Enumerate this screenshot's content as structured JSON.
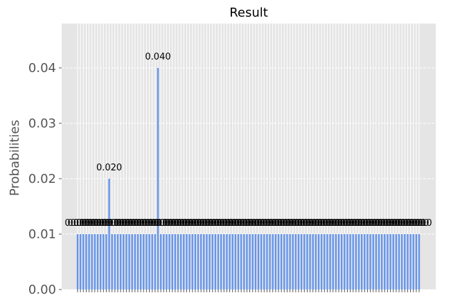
{
  "chart_data": {
    "type": "bar",
    "title": "Result",
    "xlabel": "",
    "ylabel": "Probabilities",
    "ylim": [
      0,
      0.048
    ],
    "yticks": [
      0.0,
      0.01,
      0.02,
      0.03,
      0.04
    ],
    "ytick_labels": [
      "0.00",
      "0.01",
      "0.02",
      "0.03",
      "0.04"
    ],
    "grid": true,
    "legend": "none",
    "colors": {
      "bar": "#6495ED",
      "plot_background": "#E5E5E5",
      "grid": "#FFFFFF",
      "text": "#000000",
      "axis_text": "#555555"
    },
    "values": [
      0.01,
      0.01,
      0.01,
      0.01,
      0.01,
      0.01,
      0.01,
      0.01,
      0.01,
      0.01,
      0.01,
      0.02,
      0.01,
      0.01,
      0.01,
      0.01,
      0.01,
      0.01,
      0.01,
      0.01,
      0.01,
      0.01,
      0.01,
      0.01,
      0.01,
      0.01,
      0.01,
      0.01,
      0.04,
      0.01,
      0.01,
      0.01,
      0.01,
      0.01,
      0.01,
      0.01,
      0.01,
      0.01,
      0.01,
      0.01,
      0.01,
      0.01,
      0.01,
      0.01,
      0.01,
      0.01,
      0.01,
      0.01,
      0.01,
      0.01,
      0.01,
      0.01,
      0.01,
      0.01,
      0.01,
      0.01,
      0.01,
      0.01,
      0.01,
      0.01,
      0.01,
      0.01,
      0.01,
      0.01,
      0.01,
      0.01,
      0.01,
      0.01,
      0.01,
      0.01,
      0.01,
      0.01,
      0.01,
      0.01,
      0.01,
      0.01,
      0.01,
      0.01,
      0.01,
      0.01,
      0.01,
      0.01,
      0.01,
      0.01,
      0.01,
      0.01,
      0.01,
      0.01,
      0.01,
      0.01,
      0.01,
      0.01,
      0.01,
      0.01,
      0.01,
      0.01,
      0.01,
      0.01,
      0.01,
      0.01,
      0.01,
      0.01,
      0.01,
      0.01,
      0.01,
      0.01,
      0.01,
      0.01,
      0.01,
      0.01,
      0.01,
      0.01,
      0.01,
      0.01,
      0.01,
      0.01,
      0.01,
      0.01,
      0.01,
      0.01
    ],
    "data_labels": [
      "0.010",
      "0.010",
      "0.010",
      "0.010",
      "0.010",
      "0.010",
      "0.010",
      "0.010",
      "0.010",
      "0.010",
      "0.010",
      "0.020",
      "0.010",
      "0.010",
      "0.010",
      "0.010",
      "0.010",
      "0.010",
      "0.010",
      "0.010",
      "0.010",
      "0.010",
      "0.010",
      "0.010",
      "0.010",
      "0.010",
      "0.010",
      "0.010",
      "0.040",
      "0.010",
      "0.010",
      "0.010",
      "0.010",
      "0.010",
      "0.010",
      "0.010",
      "0.010",
      "0.010",
      "0.010",
      "0.010",
      "0.010",
      "0.010",
      "0.010",
      "0.010",
      "0.010",
      "0.010",
      "0.010",
      "0.010",
      "0.010",
      "0.010",
      "0.010",
      "0.010",
      "0.010",
      "0.010",
      "0.010",
      "0.010",
      "0.010",
      "0.010",
      "0.010",
      "0.010",
      "0.010",
      "0.010",
      "0.010",
      "0.010",
      "0.010",
      "0.010",
      "0.010",
      "0.010",
      "0.010",
      "0.010",
      "0.010",
      "0.010",
      "0.010",
      "0.010",
      "0.010",
      "0.010",
      "0.010",
      "0.010",
      "0.010",
      "0.010",
      "0.010",
      "0.010",
      "0.010",
      "0.010",
      "0.010",
      "0.010",
      "0.010",
      "0.010",
      "0.010",
      "0.010",
      "0.010",
      "0.010",
      "0.010",
      "0.010",
      "0.010",
      "0.010",
      "0.010",
      "0.010",
      "0.010",
      "0.010",
      "0.010",
      "0.010",
      "0.010",
      "0.010",
      "0.010",
      "0.010",
      "0.010",
      "0.010",
      "0.010",
      "0.010",
      "0.010",
      "0.010",
      "0.010",
      "0.010",
      "0.010",
      "0.010",
      "0.010",
      "0.010",
      "0.010",
      "0.010"
    ]
  }
}
